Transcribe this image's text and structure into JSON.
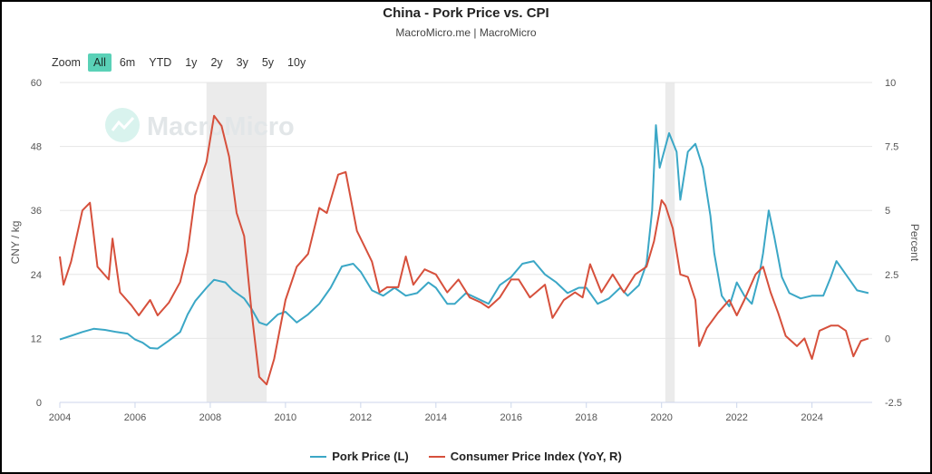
{
  "title": "China - Pork Price vs. CPI",
  "subtitle": "MacroMicro.me | MacroMicro",
  "watermark": "MacroMicro",
  "zoom": {
    "label": "Zoom",
    "buttons": [
      "All",
      "6m",
      "YTD",
      "1y",
      "2y",
      "3y",
      "5y",
      "10y"
    ],
    "active": "All"
  },
  "colors": {
    "pork": "#3ba7c6",
    "cpi": "#d6503c",
    "shade": "#ebebeb",
    "active_button": "#5ad1b7"
  },
  "chart_data": {
    "type": "line",
    "title": "China - Pork Price vs. CPI",
    "subtitle": "MacroMicro.me | MacroMicro",
    "xlim": [
      2004,
      2025.6
    ],
    "x_ticks": [
      "2004",
      "2006",
      "2008",
      "2010",
      "2012",
      "2014",
      "2016",
      "2018",
      "2020",
      "2022",
      "2024"
    ],
    "y_left": {
      "label": "CNY / kg",
      "range": [
        0,
        60
      ],
      "ticks": [
        "0",
        "12",
        "24",
        "36",
        "48",
        "60"
      ]
    },
    "y_right": {
      "label": "Percent",
      "range": [
        -2.5,
        10
      ],
      "ticks": [
        "-2.5",
        "0",
        "2.5",
        "5",
        "7.5",
        "10"
      ]
    },
    "grid": true,
    "legend": "bottom-center",
    "shaded_periods": [
      [
        2007.9,
        2009.5
      ],
      [
        2020.1,
        2020.35
      ]
    ],
    "series": [
      {
        "name": "Pork Price (L)",
        "axis": "left",
        "points": [
          [
            2004.0,
            11.8
          ],
          [
            2004.3,
            12.5
          ],
          [
            2004.6,
            13.2
          ],
          [
            2004.9,
            13.8
          ],
          [
            2005.2,
            13.6
          ],
          [
            2005.5,
            13.2
          ],
          [
            2005.8,
            12.9
          ],
          [
            2006.0,
            11.8
          ],
          [
            2006.2,
            11.2
          ],
          [
            2006.4,
            10.2
          ],
          [
            2006.6,
            10.1
          ],
          [
            2006.9,
            11.6
          ],
          [
            2007.2,
            13.2
          ],
          [
            2007.4,
            16.5
          ],
          [
            2007.6,
            19.0
          ],
          [
            2007.9,
            21.5
          ],
          [
            2008.1,
            23.0
          ],
          [
            2008.4,
            22.5
          ],
          [
            2008.6,
            21.0
          ],
          [
            2008.9,
            19.5
          ],
          [
            2009.1,
            17.5
          ],
          [
            2009.3,
            15.0
          ],
          [
            2009.5,
            14.5
          ],
          [
            2009.8,
            16.5
          ],
          [
            2010.0,
            17.0
          ],
          [
            2010.3,
            15.0
          ],
          [
            2010.6,
            16.5
          ],
          [
            2010.9,
            18.5
          ],
          [
            2011.2,
            21.5
          ],
          [
            2011.5,
            25.5
          ],
          [
            2011.8,
            26.0
          ],
          [
            2012.0,
            24.5
          ],
          [
            2012.3,
            21.0
          ],
          [
            2012.6,
            20.0
          ],
          [
            2012.9,
            21.5
          ],
          [
            2013.2,
            20.0
          ],
          [
            2013.5,
            20.5
          ],
          [
            2013.8,
            22.5
          ],
          [
            2014.0,
            21.5
          ],
          [
            2014.3,
            18.5
          ],
          [
            2014.5,
            18.5
          ],
          [
            2014.8,
            20.5
          ],
          [
            2015.1,
            19.5
          ],
          [
            2015.4,
            18.5
          ],
          [
            2015.7,
            22.0
          ],
          [
            2016.0,
            23.5
          ],
          [
            2016.3,
            26.0
          ],
          [
            2016.6,
            26.5
          ],
          [
            2016.9,
            24.0
          ],
          [
            2017.2,
            22.5
          ],
          [
            2017.5,
            20.5
          ],
          [
            2017.8,
            21.5
          ],
          [
            2018.0,
            21.5
          ],
          [
            2018.3,
            18.5
          ],
          [
            2018.6,
            19.5
          ],
          [
            2018.9,
            21.5
          ],
          [
            2019.1,
            20.0
          ],
          [
            2019.4,
            22.0
          ],
          [
            2019.6,
            26.0
          ],
          [
            2019.75,
            36.0
          ],
          [
            2019.85,
            52.0
          ],
          [
            2019.95,
            44.0
          ],
          [
            2020.2,
            50.5
          ],
          [
            2020.4,
            47.0
          ],
          [
            2020.5,
            38.0
          ],
          [
            2020.7,
            47.0
          ],
          [
            2020.9,
            48.5
          ],
          [
            2021.1,
            44.0
          ],
          [
            2021.3,
            35.0
          ],
          [
            2021.4,
            28.0
          ],
          [
            2021.6,
            20.0
          ],
          [
            2021.8,
            18.0
          ],
          [
            2022.0,
            22.5
          ],
          [
            2022.2,
            20.0
          ],
          [
            2022.4,
            18.5
          ],
          [
            2022.6,
            24.0
          ],
          [
            2022.7,
            28.0
          ],
          [
            2022.85,
            36.0
          ],
          [
            2023.0,
            31.0
          ],
          [
            2023.2,
            23.5
          ],
          [
            2023.4,
            20.5
          ],
          [
            2023.7,
            19.5
          ],
          [
            2024.0,
            20.0
          ],
          [
            2024.3,
            20.0
          ],
          [
            2024.5,
            23.5
          ],
          [
            2024.65,
            26.5
          ],
          [
            2024.9,
            24.0
          ],
          [
            2025.2,
            21.0
          ],
          [
            2025.5,
            20.5
          ]
        ]
      },
      {
        "name": "Consumer Price Index (YoY, R)",
        "axis": "right",
        "points": [
          [
            2004.0,
            3.2
          ],
          [
            2004.1,
            2.1
          ],
          [
            2004.3,
            3.0
          ],
          [
            2004.6,
            5.0
          ],
          [
            2004.8,
            5.3
          ],
          [
            2005.0,
            2.8
          ],
          [
            2005.3,
            2.3
          ],
          [
            2005.4,
            3.9
          ],
          [
            2005.6,
            1.8
          ],
          [
            2005.9,
            1.3
          ],
          [
            2006.1,
            0.9
          ],
          [
            2006.4,
            1.5
          ],
          [
            2006.6,
            0.9
          ],
          [
            2006.9,
            1.4
          ],
          [
            2007.2,
            2.2
          ],
          [
            2007.4,
            3.4
          ],
          [
            2007.6,
            5.6
          ],
          [
            2007.9,
            6.9
          ],
          [
            2008.1,
            8.7
          ],
          [
            2008.3,
            8.3
          ],
          [
            2008.5,
            7.1
          ],
          [
            2008.7,
            4.9
          ],
          [
            2008.9,
            4.0
          ],
          [
            2009.1,
            1.0
          ],
          [
            2009.3,
            -1.5
          ],
          [
            2009.5,
            -1.8
          ],
          [
            2009.7,
            -0.8
          ],
          [
            2010.0,
            1.5
          ],
          [
            2010.3,
            2.8
          ],
          [
            2010.6,
            3.3
          ],
          [
            2010.9,
            5.1
          ],
          [
            2011.1,
            4.9
          ],
          [
            2011.4,
            6.4
          ],
          [
            2011.6,
            6.5
          ],
          [
            2011.9,
            4.2
          ],
          [
            2012.1,
            3.6
          ],
          [
            2012.3,
            3.0
          ],
          [
            2012.5,
            1.8
          ],
          [
            2012.7,
            2.0
          ],
          [
            2013.0,
            2.0
          ],
          [
            2013.2,
            3.2
          ],
          [
            2013.4,
            2.1
          ],
          [
            2013.7,
            2.7
          ],
          [
            2014.0,
            2.5
          ],
          [
            2014.3,
            1.8
          ],
          [
            2014.6,
            2.3
          ],
          [
            2014.9,
            1.6
          ],
          [
            2015.2,
            1.4
          ],
          [
            2015.4,
            1.2
          ],
          [
            2015.7,
            1.6
          ],
          [
            2016.0,
            2.3
          ],
          [
            2016.2,
            2.3
          ],
          [
            2016.5,
            1.6
          ],
          [
            2016.9,
            2.1
          ],
          [
            2017.1,
            0.8
          ],
          [
            2017.4,
            1.5
          ],
          [
            2017.7,
            1.8
          ],
          [
            2017.9,
            1.6
          ],
          [
            2018.1,
            2.9
          ],
          [
            2018.4,
            1.8
          ],
          [
            2018.7,
            2.5
          ],
          [
            2019.0,
            1.8
          ],
          [
            2019.3,
            2.5
          ],
          [
            2019.6,
            2.8
          ],
          [
            2019.8,
            3.8
          ],
          [
            2020.0,
            5.4
          ],
          [
            2020.1,
            5.2
          ],
          [
            2020.3,
            4.3
          ],
          [
            2020.5,
            2.5
          ],
          [
            2020.7,
            2.4
          ],
          [
            2020.9,
            1.5
          ],
          [
            2021.0,
            -0.3
          ],
          [
            2021.2,
            0.4
          ],
          [
            2021.5,
            1.0
          ],
          [
            2021.8,
            1.5
          ],
          [
            2022.0,
            0.9
          ],
          [
            2022.2,
            1.5
          ],
          [
            2022.5,
            2.5
          ],
          [
            2022.7,
            2.8
          ],
          [
            2022.9,
            1.8
          ],
          [
            2023.1,
            1.0
          ],
          [
            2023.3,
            0.1
          ],
          [
            2023.6,
            -0.3
          ],
          [
            2023.8,
            0.0
          ],
          [
            2024.0,
            -0.8
          ],
          [
            2024.2,
            0.3
          ],
          [
            2024.5,
            0.5
          ],
          [
            2024.7,
            0.5
          ],
          [
            2024.9,
            0.3
          ],
          [
            2025.1,
            -0.7
          ],
          [
            2025.3,
            -0.1
          ],
          [
            2025.5,
            0.0
          ]
        ]
      }
    ]
  }
}
